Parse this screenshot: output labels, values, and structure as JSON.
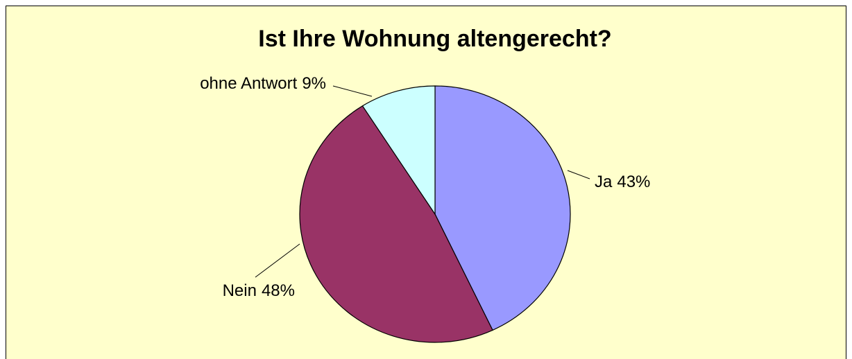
{
  "chart_data": {
    "type": "pie",
    "title": "Ist Ihre Wohnung altengerecht?",
    "categories": [
      "Ja",
      "Nein",
      "ohne Antwort"
    ],
    "values": [
      43,
      48,
      9
    ],
    "value_labels": [
      "43%",
      "48%",
      "9%"
    ],
    "colors": [
      "#9999ff",
      "#993366",
      "#ccffff"
    ]
  }
}
